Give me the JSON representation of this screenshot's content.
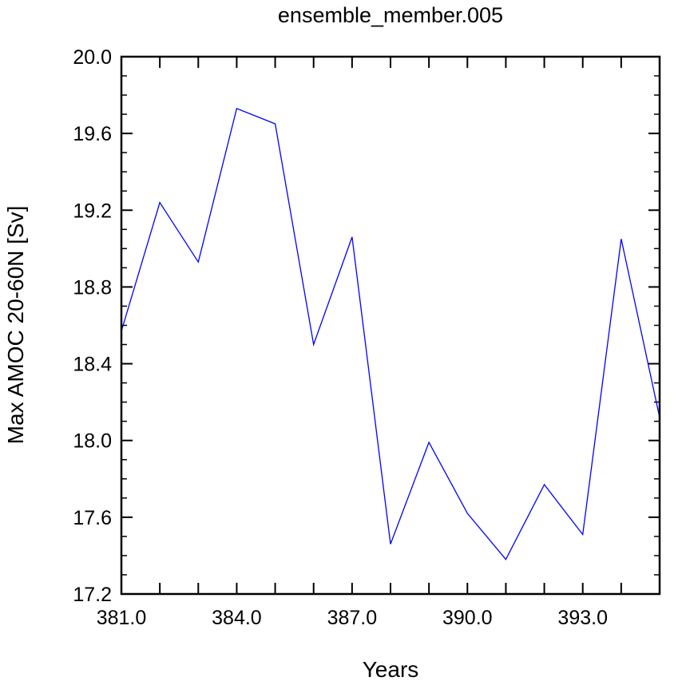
{
  "chart_data": {
    "type": "line",
    "title": "ensemble_member.005",
    "xlabel": "Years",
    "ylabel": "Max AMOC 20-60N [Sv]",
    "xlim": [
      381,
      395
    ],
    "ylim": [
      17.2,
      20.0
    ],
    "xticks": [
      381,
      384,
      387,
      390,
      393
    ],
    "xtick_labels": [
      "381.0",
      "384.0",
      "387.0",
      "390.0",
      "393.0"
    ],
    "yticks": [
      17.2,
      17.6,
      18.0,
      18.4,
      18.8,
      19.2,
      19.6,
      20.0
    ],
    "ytick_labels": [
      "17.2",
      "17.6",
      "18.0",
      "18.4",
      "18.8",
      "19.2",
      "19.6",
      "20.0"
    ],
    "grid": false,
    "series": [
      {
        "color": "#0000ff",
        "x": [
          381,
          382,
          383,
          384,
          385,
          386,
          387,
          388,
          389,
          390,
          391,
          392,
          393,
          394,
          395
        ],
        "y": [
          18.57,
          19.24,
          18.93,
          19.73,
          19.65,
          18.5,
          19.06,
          17.46,
          17.99,
          17.62,
          17.38,
          17.77,
          17.51,
          19.05,
          18.12
        ]
      }
    ]
  }
}
